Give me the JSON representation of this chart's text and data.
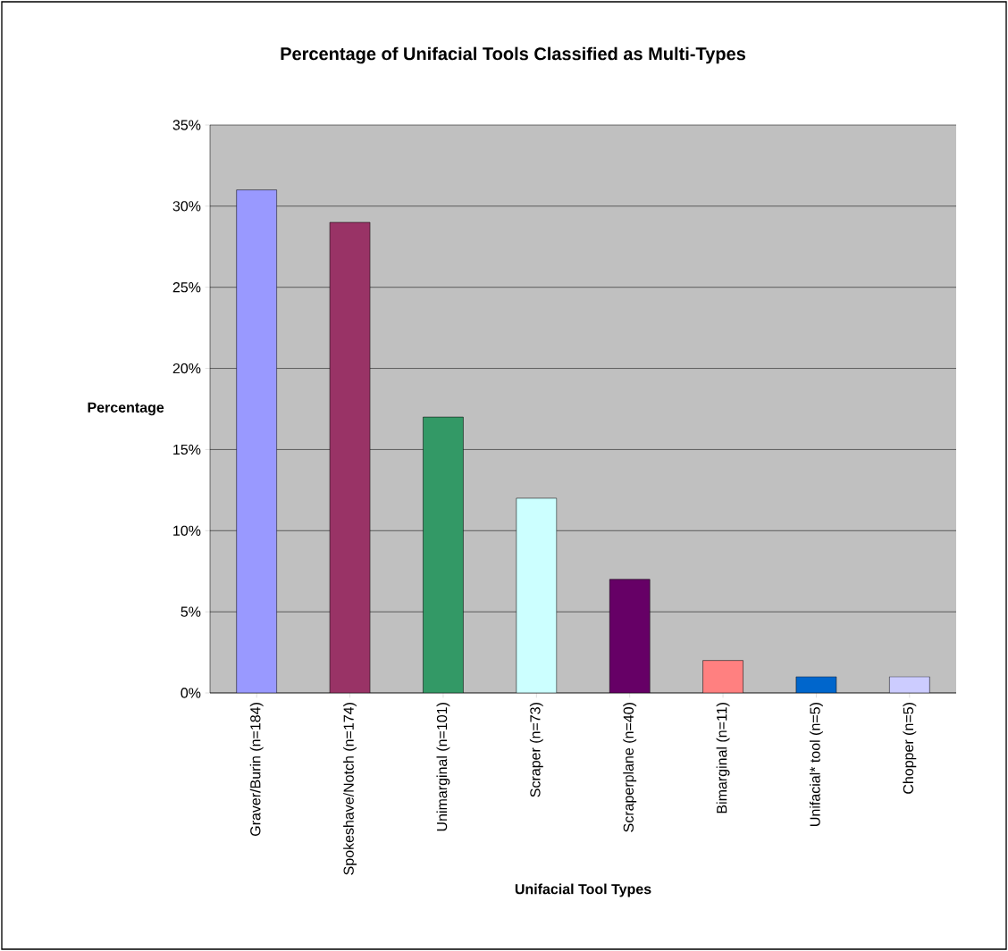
{
  "chart_data": {
    "type": "bar",
    "title": "Percentage of Unifacial Tools Classified as Multi-Types",
    "xlabel": "Unifacial Tool Types",
    "ylabel": "Percentage",
    "categories": [
      "Graver/Burin (n=184)",
      "Spokeshave/Notch (n=174)",
      "Unimarginal (n=101)",
      "Scraper (n=73)",
      "Scraperplane (n=40)",
      "Bimarginal (n=11)",
      "Unifacial* tool (n=5)",
      "Chopper (n=5)"
    ],
    "values": [
      31,
      29,
      17,
      12,
      7,
      2,
      1,
      1
    ],
    "colors": [
      "#9999ff",
      "#993366",
      "#339966",
      "#ccffff",
      "#660066",
      "#ff8080",
      "#0066cc",
      "#ccccff"
    ],
    "ylim": [
      0,
      35
    ],
    "yticks": [
      {
        "value": 0,
        "label": "0%"
      },
      {
        "value": 5,
        "label": "5%"
      },
      {
        "value": 10,
        "label": "10%"
      },
      {
        "value": 15,
        "label": "15%"
      },
      {
        "value": 20,
        "label": "20%"
      },
      {
        "value": 25,
        "label": "25%"
      },
      {
        "value": 30,
        "label": "30%"
      },
      {
        "value": 35,
        "label": "35%"
      }
    ],
    "grid": "y",
    "legend": false
  }
}
